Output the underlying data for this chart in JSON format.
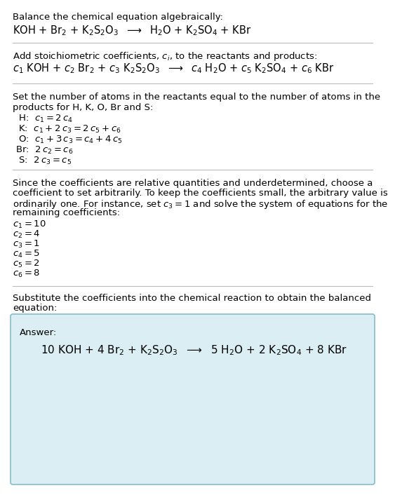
{
  "title_line1": "Balance the chemical equation algebraically:",
  "equation_unbalanced": "KOH + Br$_2$ + K$_2$S$_2$O$_3$  $\\longrightarrow$  H$_2$O + K$_2$SO$_4$ + KBr",
  "section2_header": "Add stoichiometric coefficients, $c_i$, to the reactants and products:",
  "equation_ci": "$c_1$ KOH + $c_2$ Br$_2$ + $c_3$ K$_2$S$_2$O$_3$  $\\longrightarrow$  $c_4$ H$_2$O + $c_5$ K$_2$SO$_4$ + $c_6$ KBr",
  "section3_header1": "Set the number of atoms in the reactants equal to the number of atoms in the",
  "section3_header2": "products for H, K, O, Br and S:",
  "equations": [
    " H:  $c_1 = 2\\,c_4$",
    " K:  $c_1 + 2\\,c_3 = 2\\,c_5 + c_6$",
    " O:  $c_1 + 3\\,c_3 = c_4 + 4\\,c_5$",
    "Br:  $2\\,c_2 = c_6$",
    " S:  $2\\,c_3 = c_5$"
  ],
  "section4_text1": "Since the coefficients are relative quantities and underdetermined, choose a",
  "section4_text2": "coefficient to set arbitrarily. To keep the coefficients small, the arbitrary value is",
  "section4_text3": "ordinarily one. For instance, set $c_3 = 1$ and solve the system of equations for the",
  "section4_text4": "remaining coefficients:",
  "coeff_lines": [
    "$c_1 = 10$",
    "$c_2 = 4$",
    "$c_3 = 1$",
    "$c_4 = 5$",
    "$c_5 = 2$",
    "$c_6 = 8$"
  ],
  "section5_text1": "Substitute the coefficients into the chemical reaction to obtain the balanced",
  "section5_text2": "equation:",
  "answer_label": "Answer:",
  "answer_equation": "10 KOH + 4 Br$_2$ + K$_2$S$_2$O$_3$  $\\longrightarrow$  5 H$_2$O + 2 K$_2$SO$_4$ + 8 KBr",
  "bg_color": "#ffffff",
  "answer_box_color": "#daeef3",
  "answer_box_edge": "#88bbcc",
  "font_size": 9.5,
  "eq_font_size": 10.5,
  "line_color": "#bbbbbb"
}
